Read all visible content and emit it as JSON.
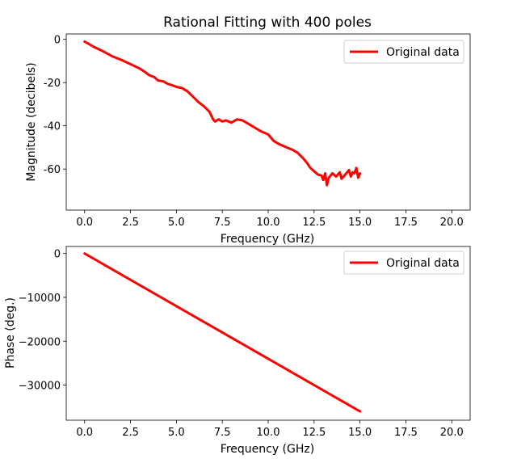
{
  "chart_data": [
    {
      "type": "line",
      "title": "Rational Fitting with 400 poles",
      "xlabel": "Frequency (GHz)",
      "ylabel": "Magnitude (decibels)",
      "xlim": [
        -1.0,
        21.0
      ],
      "ylim": [
        -79,
        2.5
      ],
      "xticks": [
        0.0,
        2.5,
        5.0,
        7.5,
        10.0,
        12.5,
        15.0,
        17.5,
        20.0
      ],
      "xtick_labels": [
        "0.0",
        "2.5",
        "5.0",
        "7.5",
        "10.0",
        "12.5",
        "15.0",
        "17.5",
        "20.0"
      ],
      "yticks": [
        0,
        -20,
        -40,
        -60
      ],
      "ytick_labels": [
        "0",
        "-20",
        "-40",
        "-60"
      ],
      "legend": {
        "location": "top-right",
        "entries": [
          "Original data"
        ]
      },
      "series": [
        {
          "name": "Original data",
          "color": "#ff0000",
          "x": [
            0.0,
            0.2,
            0.5,
            1.0,
            1.5,
            2.0,
            2.5,
            3.0,
            3.3,
            3.5,
            3.8,
            4.0,
            4.3,
            4.5,
            4.7,
            5.0,
            5.3,
            5.6,
            5.9,
            6.2,
            6.5,
            6.8,
            7.0,
            7.1,
            7.3,
            7.5,
            7.7,
            8.0,
            8.3,
            8.6,
            9.0,
            9.3,
            9.6,
            10.0,
            10.3,
            10.6,
            11.0,
            11.3,
            11.6,
            11.9,
            12.1,
            12.3,
            12.5,
            12.7,
            12.9,
            13.0,
            13.1,
            13.2,
            13.3,
            13.5,
            13.7,
            13.9,
            14.0,
            14.2,
            14.4,
            14.5,
            14.6,
            14.7,
            14.8,
            14.9,
            15.0
          ],
          "y": [
            -1.0,
            -2.0,
            -3.5,
            -5.5,
            -7.8,
            -9.5,
            -11.5,
            -13.5,
            -15.2,
            -16.5,
            -17.5,
            -19.0,
            -19.5,
            -20.5,
            -21.0,
            -22.0,
            -22.5,
            -24.0,
            -26.5,
            -29.0,
            -31.0,
            -33.5,
            -37.0,
            -38.0,
            -37.0,
            -38.0,
            -37.5,
            -38.5,
            -37.0,
            -37.5,
            -39.5,
            -41.0,
            -42.5,
            -44.0,
            -47.0,
            -48.5,
            -50.0,
            -51.0,
            -52.5,
            -55.0,
            -57.0,
            -59.5,
            -61.0,
            -62.5,
            -63.0,
            -65.0,
            -62.0,
            -67.5,
            -64.0,
            -62.0,
            -63.5,
            -61.5,
            -64.5,
            -62.5,
            -60.5,
            -63.5,
            -61.5,
            -62.0,
            -59.5,
            -64.0,
            -62.0
          ]
        }
      ]
    },
    {
      "type": "line",
      "title": "",
      "xlabel": "Frequency (GHz)",
      "ylabel": "Phase (deg.)",
      "xlim": [
        -1.0,
        21.0
      ],
      "ylim": [
        -38000,
        1600
      ],
      "xticks": [
        0.0,
        2.5,
        5.0,
        7.5,
        10.0,
        12.5,
        15.0,
        17.5,
        20.0
      ],
      "xtick_labels": [
        "0.0",
        "2.5",
        "5.0",
        "7.5",
        "10.0",
        "12.5",
        "15.0",
        "17.5",
        "20.0"
      ],
      "yticks": [
        0,
        -10000,
        -20000,
        -30000
      ],
      "ytick_labels": [
        "0",
        "−10000",
        "−20000",
        "−30000"
      ],
      "legend": {
        "location": "top-right",
        "entries": [
          "Original data"
        ]
      },
      "series": [
        {
          "name": "Original data",
          "color": "#ff0000",
          "x": [
            0.0,
            15.0
          ],
          "y": [
            0,
            -36000
          ]
        }
      ]
    }
  ]
}
